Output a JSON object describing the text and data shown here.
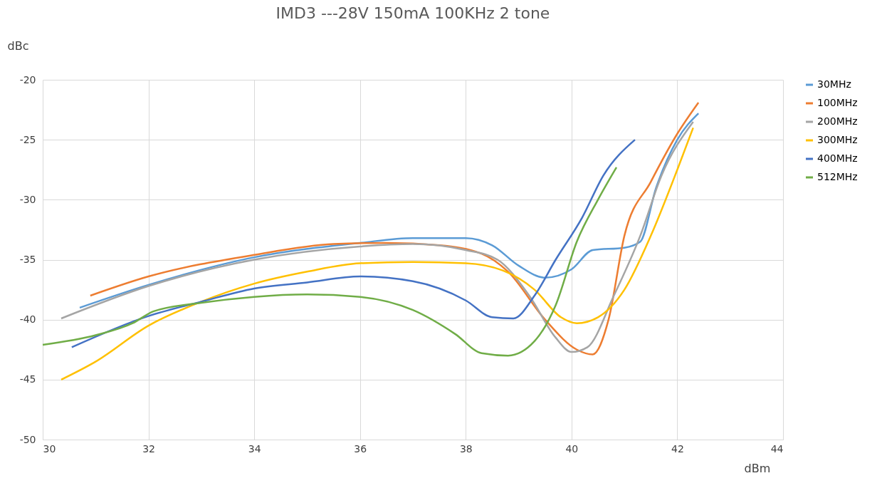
{
  "chart_data": {
    "type": "line",
    "title": "IMD3 ---28V 150mA 100KHz 2 tone",
    "xlabel": "dBm",
    "ylabel": "dBc",
    "xlim": [
      30,
      44
    ],
    "xticks": [
      30,
      32,
      34,
      36,
      38,
      40,
      42,
      44
    ],
    "ylim": [
      -50,
      -20
    ],
    "yticks": [
      -50,
      -45,
      -40,
      -35,
      -30,
      -25,
      -20
    ],
    "grid": true,
    "legend": "right",
    "marker": "none",
    "line_style": "solid",
    "series": [
      {
        "name": "30MHz",
        "color": "#5b9bd5",
        "x": [
          30.7,
          32,
          34,
          36,
          37,
          38,
          38.5,
          39,
          39.5,
          40,
          40.4,
          41,
          41.3,
          41.6,
          42,
          42.4
        ],
        "values": [
          -39.0,
          -37.1,
          -34.8,
          -33.6,
          -33.2,
          -33.2,
          -33.8,
          -35.5,
          -36.5,
          -35.8,
          -34.2,
          -34.0,
          -33.5,
          -29.0,
          -25.0,
          -22.8
        ]
      },
      {
        "name": "100MHz",
        "color": "#ed7d31",
        "x": [
          30.9,
          32,
          34,
          35.5,
          36.5,
          37.5,
          38.3,
          38.8,
          39.5,
          40.1,
          40.4,
          40.7,
          41,
          41.5,
          42,
          42.4
        ],
        "values": [
          -38.0,
          -36.4,
          -34.6,
          -33.7,
          -33.6,
          -33.8,
          -34.5,
          -36.0,
          -40.0,
          -42.5,
          -42.9,
          -40.0,
          -33.0,
          -28.5,
          -24.5,
          -21.9
        ]
      },
      {
        "name": "200MHz",
        "color": "#a5a5a5",
        "x": [
          30.35,
          32,
          34,
          36,
          37,
          38,
          38.6,
          39.2,
          39.7,
          40,
          40.3,
          40.8,
          41.3,
          41.7,
          42.3
        ],
        "values": [
          -39.9,
          -37.2,
          -35.0,
          -33.9,
          -33.7,
          -34.2,
          -35.0,
          -38.0,
          -41.5,
          -42.7,
          -42.3,
          -38.0,
          -33.0,
          -28.0,
          -23.5
        ]
      },
      {
        "name": "300MHz",
        "color": "#ffc000",
        "x": [
          30.35,
          31,
          32,
          33,
          34,
          35,
          36,
          37,
          38,
          38.7,
          39.3,
          39.8,
          40.1,
          40.5,
          41,
          41.5,
          42,
          42.3
        ],
        "values": [
          -45.0,
          -43.5,
          -40.5,
          -38.5,
          -37.0,
          -36.0,
          -35.3,
          -35.2,
          -35.3,
          -35.9,
          -37.5,
          -39.8,
          -40.3,
          -39.8,
          -37.5,
          -33.0,
          -27.5,
          -24.0
        ]
      },
      {
        "name": "400MHz",
        "color": "#4472c4",
        "x": [
          30.55,
          32,
          33,
          34,
          35,
          36,
          37,
          38,
          38.5,
          38.9,
          39.3,
          39.7,
          40.2,
          40.6,
          41.2
        ],
        "values": [
          -42.3,
          -39.7,
          -38.5,
          -37.4,
          -36.9,
          -36.4,
          -36.8,
          -38.4,
          -39.8,
          -39.9,
          -38.0,
          -35.0,
          -31.5,
          -28.0,
          -25.0
        ]
      },
      {
        "name": "512MHz",
        "color": "#70ad47",
        "x": [
          30,
          31,
          31.7,
          32.1,
          33,
          34,
          35,
          36,
          37,
          37.8,
          38.3,
          38.8,
          39.3,
          39.7,
          40.1,
          40.5,
          40.85
        ],
        "values": [
          -42.1,
          -41.3,
          -40.3,
          -39.3,
          -38.6,
          -38.1,
          -37.9,
          -38.1,
          -39.2,
          -41.2,
          -42.8,
          -43.0,
          -41.8,
          -38.8,
          -33.5,
          -30.0,
          -27.3
        ]
      }
    ]
  }
}
